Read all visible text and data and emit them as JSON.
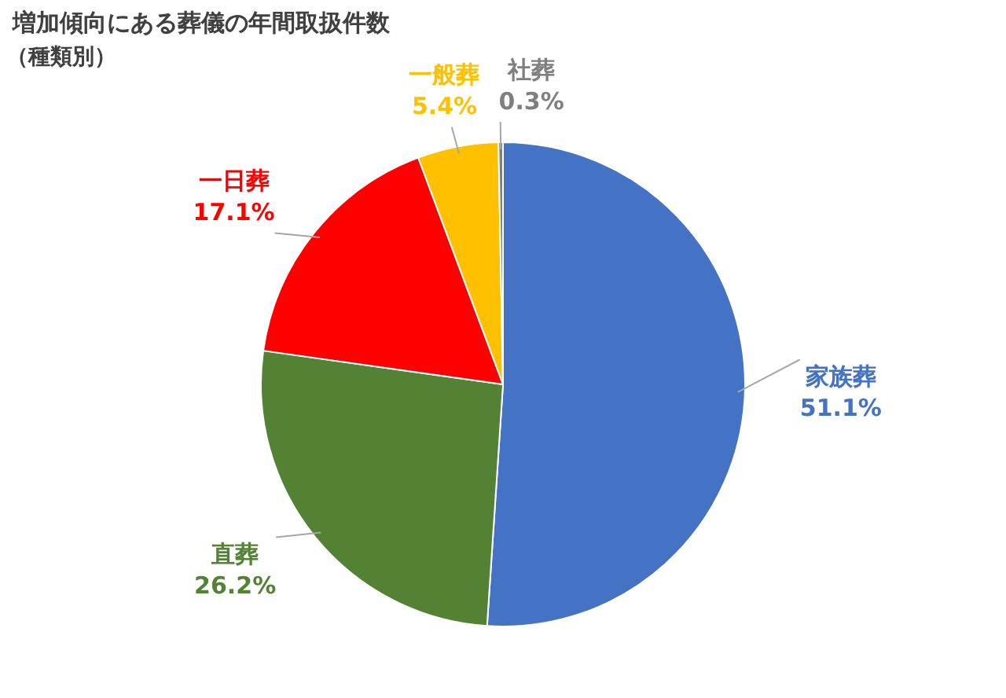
{
  "chart_data": {
    "type": "pie",
    "title": "増加傾向にある葬儀の年間取扱件数",
    "subtitle": "（種類別）",
    "categories": [
      "家族葬",
      "直葬",
      "一日葬",
      "一般葬",
      "社葬"
    ],
    "values": [
      51.1,
      26.2,
      17.1,
      5.4,
      0.3
    ],
    "colors": [
      "#4472c4",
      "#548235",
      "#ff0000",
      "#ffc000",
      "#7f7f7f"
    ],
    "value_labels": [
      "51.1%",
      "26.2%",
      "17.1%",
      "5.4%",
      "0.3%"
    ],
    "legend": false
  }
}
